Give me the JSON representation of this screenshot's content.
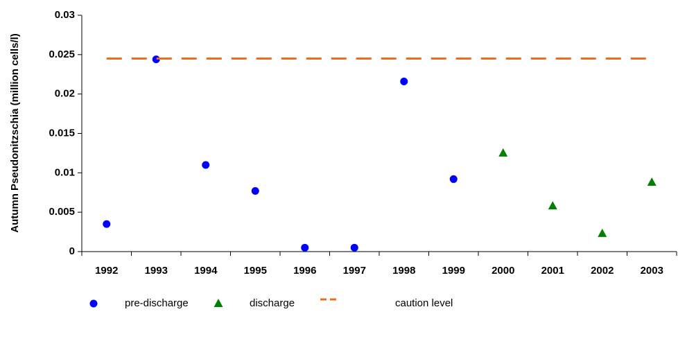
{
  "chart_data": {
    "type": "scatter",
    "y_label": "Autumn Pseudonitzschia (million cells/l)",
    "categories": [
      "1992",
      "1993",
      "1994",
      "1995",
      "1996",
      "1997",
      "1998",
      "1999",
      "2000",
      "2001",
      "2002",
      "2003"
    ],
    "series": [
      {
        "name": "pre-discharge",
        "color": "#0000ff",
        "marker": "circle",
        "values": [
          0.0035,
          0.0244,
          0.011,
          0.0077,
          0.0005,
          0.0005,
          0.0216,
          0.0092,
          null,
          null,
          null,
          null
        ]
      },
      {
        "name": "discharge",
        "color": "#008000",
        "marker": "triangle",
        "values": [
          null,
          null,
          null,
          null,
          null,
          null,
          null,
          null,
          0.0125,
          0.0058,
          0.0023,
          0.0088
        ]
      },
      {
        "name": "caution level",
        "color": "#f26b1d",
        "marker": "dashed-line",
        "values": [
          0.0245,
          0.0245,
          0.0245,
          0.0245,
          0.0245,
          0.0245,
          0.0245,
          0.0245,
          0.0245,
          0.0245,
          0.0245,
          0.0245
        ]
      }
    ],
    "ylim": [
      0,
      0.03
    ],
    "yticks": [
      0,
      0.005,
      0.01,
      0.015,
      0.02,
      0.025,
      0.03
    ]
  }
}
